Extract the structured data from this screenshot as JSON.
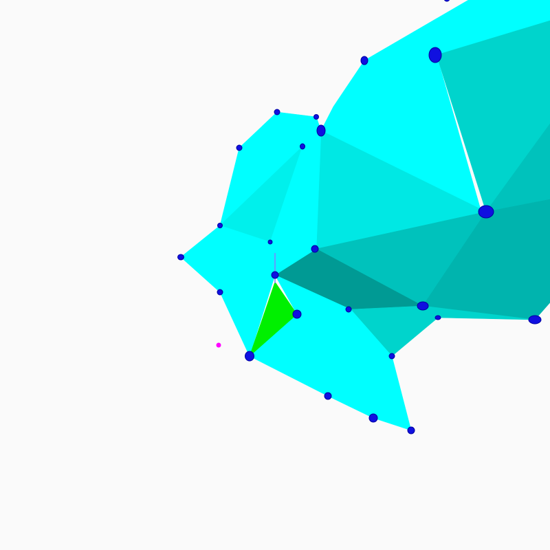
{
  "scene": {
    "background_color": "#fafafa",
    "face_colors": {
      "light_cyan": "#00ffff",
      "cyan_a": "#00f0ec",
      "cyan_b": "#00e8e4",
      "teal_a": "#00d4cc",
      "teal_b": "#00c2bc",
      "teal_c": "#00b4ae",
      "teal_d": "#00a8a2",
      "teal_dark": "#009a94",
      "highlight_face": "#00f000"
    },
    "vertex_color": "#1010e0",
    "vertex_outline_color": "#0000a0",
    "marker_color": "#ff00ff",
    "axis_line_color": "#8080ff"
  }
}
